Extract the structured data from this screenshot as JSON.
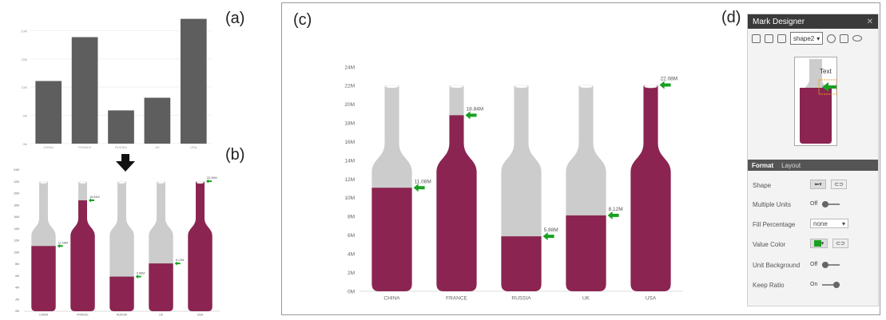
{
  "labels": {
    "a": "(a)",
    "b": "(b)",
    "c": "(c)",
    "d": "(d)"
  },
  "chart_data": [
    {
      "panel": "a",
      "type": "bar",
      "categories": [
        "CHINA",
        "FRANCE",
        "RUSSIA",
        "UK",
        "USA"
      ],
      "values": [
        11.08,
        18.84,
        5.88,
        8.12,
        22.08
      ],
      "ylim": [
        0,
        24
      ],
      "yticks": [
        "0M",
        "5M",
        "10M",
        "15M",
        "20M"
      ],
      "colors": {
        "bar": "#5e5e5e"
      }
    },
    {
      "panel": "b",
      "type": "bar",
      "categories": [
        "CHINA",
        "FRANCE",
        "RUSSIA",
        "UK",
        "USA"
      ],
      "values": [
        11.08,
        18.84,
        5.88,
        8.12,
        22.08
      ],
      "value_labels": [
        "11.08M",
        "18.84M",
        "5.88M",
        "8.12M",
        "22.08M"
      ],
      "ylim": [
        0,
        24
      ],
      "yticks": [
        "0M",
        "2M",
        "4M",
        "6M",
        "8M",
        "10M",
        "12M",
        "14M",
        "16M",
        "18M",
        "20M",
        "22M",
        "24M"
      ],
      "colors": {
        "fill": "#8b2450",
        "empty": "#cccccc",
        "arrow": "#18a021"
      }
    },
    {
      "panel": "c",
      "type": "bar",
      "categories": [
        "CHINA",
        "FRANCE",
        "RUSSIA",
        "UK",
        "USA"
      ],
      "values": [
        11.08,
        18.84,
        5.88,
        8.12,
        22.08
      ],
      "value_labels": [
        "11.08M",
        "18.84M",
        "5.88M",
        "8.12M",
        "22.08M"
      ],
      "ylim": [
        0,
        24
      ],
      "yticks": [
        "0M",
        "2M",
        "4M",
        "6M",
        "8M",
        "10M",
        "12M",
        "14M",
        "16M",
        "18M",
        "20M",
        "22M",
        "24M"
      ],
      "colors": {
        "fill": "#8b2450",
        "empty": "#cccccc",
        "arrow": "#18a021"
      }
    }
  ],
  "designer": {
    "title": "Mark Designer",
    "shape_value": "shape2",
    "preview_text": "Text",
    "tabs": [
      "Format",
      "Layout"
    ],
    "rows": [
      {
        "label": "Shape",
        "control": "icon"
      },
      {
        "label": "Multiple Units",
        "control": "toggle",
        "value": "Off"
      },
      {
        "label": "Fill Percentage",
        "control": "select",
        "value": "none"
      },
      {
        "label": "Value Color",
        "control": "color"
      },
      {
        "label": "Unit Background",
        "control": "toggle",
        "value": "Off"
      },
      {
        "label": "Keep Ratio",
        "control": "toggle",
        "value": "On"
      }
    ],
    "colors": {
      "value_color": "#18a021",
      "preview_fill": "#8b2450"
    }
  }
}
